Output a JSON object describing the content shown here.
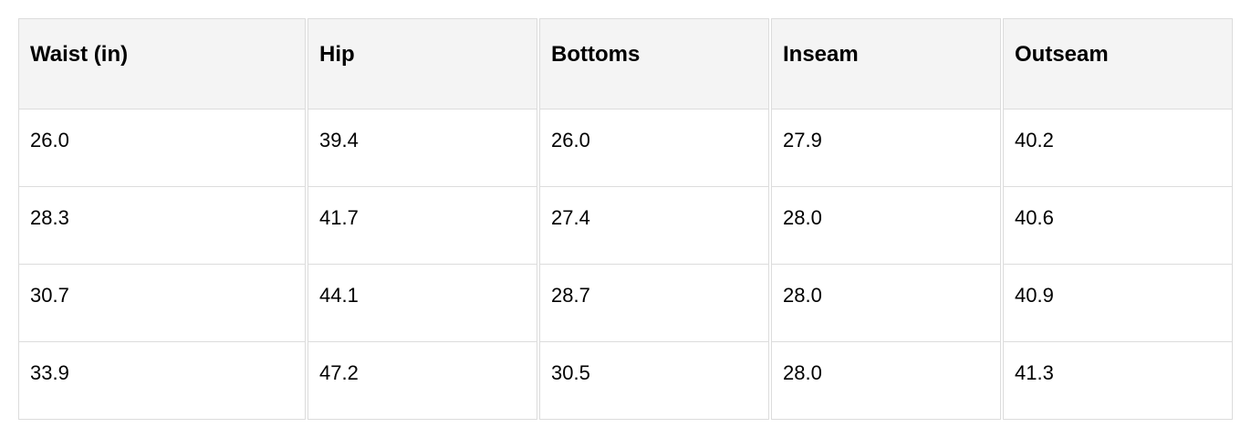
{
  "table": {
    "headers": [
      "Waist (in)",
      "Hip",
      "Bottoms",
      "Inseam",
      "Outseam"
    ],
    "rows": [
      [
        "26.0",
        "39.4",
        "26.0",
        "27.9",
        "40.2"
      ],
      [
        "28.3",
        "41.7",
        "27.4",
        "28.0",
        "40.6"
      ],
      [
        "30.7",
        "44.1",
        "28.7",
        "28.0",
        "40.9"
      ],
      [
        "33.9",
        "47.2",
        "30.5",
        "28.0",
        "41.3"
      ]
    ]
  },
  "colors": {
    "header_bg": "#f4f4f4",
    "border": "#dcdcdc"
  }
}
